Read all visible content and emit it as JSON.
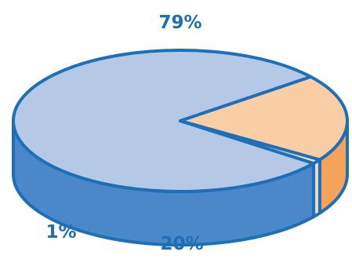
{
  "chart_data": {
    "type": "pie",
    "style": "3d",
    "title": "",
    "slices": [
      {
        "label": "79%",
        "value": 79,
        "top_color": "#b5c9e6",
        "side_color": "#4a88ca"
      },
      {
        "label": "20%",
        "value": 20,
        "top_color": "#f9cea4",
        "side_color": "#f5a35a"
      },
      {
        "label": "1%",
        "value": 1,
        "top_color": "#fbdcc0",
        "side_color": "#fbdcc0"
      }
    ],
    "outline_color": "#1d6fb8",
    "label_color": "#1d6fb8"
  }
}
